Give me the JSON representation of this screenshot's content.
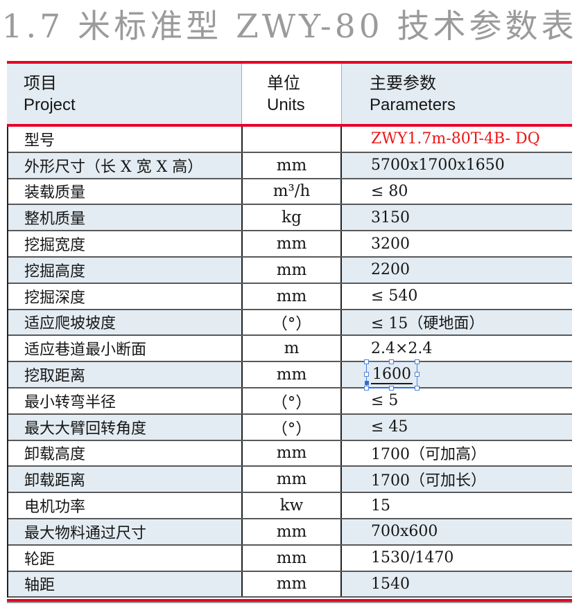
{
  "title": "1.7 米标准型 ZWY-80 技术参数表",
  "table": {
    "header": {
      "project_zh": "项目",
      "project_en": "Project",
      "units_zh": "单位",
      "units_en": "Units",
      "params_zh": "主要参数",
      "params_en": "Parameters"
    },
    "rows": [
      {
        "label": "型号",
        "unit": "",
        "value": "ZWY1.7m-80T-4B- DQ",
        "red": true
      },
      {
        "label": "外形尺寸（长 X 宽 X 高）",
        "unit": "mm",
        "value": "5700x1700x1650"
      },
      {
        "label": "装载质量",
        "unit": "m³/h",
        "value": "≤ 80"
      },
      {
        "label": "整机质量",
        "unit": "kg",
        "value": "3150"
      },
      {
        "label": "挖掘宽度",
        "unit": "mm",
        "value": "3200"
      },
      {
        "label": "挖掘高度",
        "unit": "mm",
        "value": "2200"
      },
      {
        "label": "挖掘深度",
        "unit": "mm",
        "value": "≤ 540"
      },
      {
        "label": "适应爬坡坡度",
        "unit": "（°）",
        "value": "≤ 15（硬地面）"
      },
      {
        "label": "适应巷道最小断面",
        "unit": "m",
        "value": "2.4×2.4"
      },
      {
        "label": "挖取距离",
        "unit": "mm",
        "value": "1600",
        "selected": true
      },
      {
        "label": "最小转弯半径",
        "unit": "（°）",
        "value": "≤ 5"
      },
      {
        "label": "最大大臂回转角度",
        "unit": "（°）",
        "value": "≤ 45"
      },
      {
        "label": "卸载高度",
        "unit": "mm",
        "value": "1700（可加高）"
      },
      {
        "label": "卸载距离",
        "unit": "mm",
        "value": "1700（可加长）"
      },
      {
        "label": "电机功率",
        "unit": "kw",
        "value": "15"
      },
      {
        "label": "最大物料通过尺寸",
        "unit": "mm",
        "value": "700x600"
      },
      {
        "label": "轮距",
        "unit": "mm",
        "value": "1530/1470"
      },
      {
        "label": "轴距",
        "unit": "mm",
        "value": "1540"
      }
    ]
  },
  "colors": {
    "accent_red": "#e60127",
    "value_red": "#ed1515",
    "row_alt_blue": "#e3ecf2",
    "title_gray": "#9b9b9b",
    "selection_blue": "#4d82d8",
    "row_border_gray": "#57585a"
  }
}
